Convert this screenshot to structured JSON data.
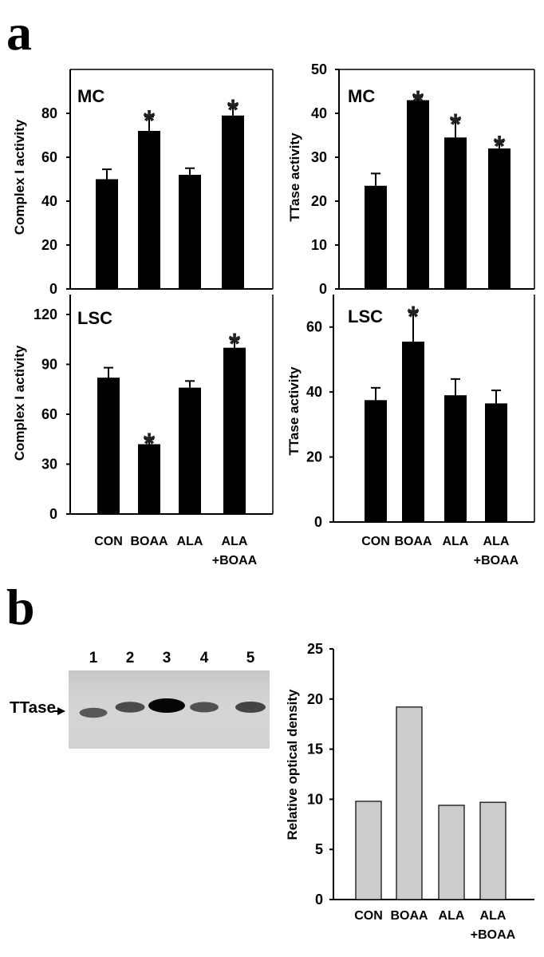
{
  "panels": {
    "a": "a",
    "b": "b"
  },
  "categories": [
    "CON",
    "BOAA",
    "ALA",
    "ALA\n+BOAA"
  ],
  "chart_data": [
    {
      "type": "bar",
      "panel": "a",
      "region": "MC",
      "ylabel": "Complex I activity",
      "ylim": [
        0,
        100
      ],
      "yticks": [
        0,
        20,
        40,
        60,
        80
      ],
      "categories": [
        "CON",
        "BOAA",
        "ALA",
        "ALA +BOAA"
      ],
      "values": [
        50,
        72,
        52,
        79
      ],
      "errors": [
        4.5,
        6.5,
        3,
        4.5
      ],
      "significant": [
        false,
        true,
        false,
        true
      ],
      "bar_color": "#000000"
    },
    {
      "type": "bar",
      "panel": "a",
      "region": "MC",
      "ylabel": "TTase activity",
      "ylim": [
        0,
        50
      ],
      "yticks": [
        0,
        10,
        20,
        30,
        40,
        50
      ],
      "categories": [
        "CON",
        "BOAA",
        "ALA",
        "ALA +BOAA"
      ],
      "values": [
        23.5,
        43,
        34.5,
        32
      ],
      "errors": [
        2.8,
        0.7,
        4,
        1.5
      ],
      "significant": [
        false,
        true,
        true,
        true
      ],
      "bar_color": "#000000"
    },
    {
      "type": "bar",
      "panel": "a",
      "region": "LSC",
      "ylabel": "Complex I activity",
      "ylim": [
        0,
        132
      ],
      "yticks": [
        0,
        30,
        60,
        90,
        120
      ],
      "categories": [
        "CON",
        "BOAA",
        "ALA",
        "ALA +BOAA"
      ],
      "values": [
        82,
        42,
        76,
        100
      ],
      "errors": [
        6,
        3,
        4,
        5
      ],
      "significant": [
        false,
        true,
        false,
        true
      ],
      "bar_color": "#000000"
    },
    {
      "type": "bar",
      "panel": "a",
      "region": "LSC",
      "ylabel": "TTase activity",
      "ylim": [
        0,
        70
      ],
      "yticks": [
        0,
        20,
        40,
        60
      ],
      "categories": [
        "CON",
        "BOAA",
        "ALA",
        "ALA +BOAA"
      ],
      "values": [
        37.5,
        55.5,
        39,
        36.5
      ],
      "errors": [
        3.8,
        9,
        5,
        4
      ],
      "significant": [
        false,
        true,
        false,
        false
      ],
      "bar_color": "#000000"
    },
    {
      "type": "bar",
      "panel": "b",
      "ylabel": "Relative optical density",
      "ylim": [
        0,
        25
      ],
      "yticks": [
        0,
        5,
        10,
        15,
        20,
        25
      ],
      "categories": [
        "CON",
        "BOAA",
        "ALA",
        "ALA +BOAA"
      ],
      "values": [
        9.8,
        19.2,
        9.4,
        9.7
      ],
      "bar_color": "#cccccc"
    }
  ],
  "blot": {
    "label": "TTase",
    "lanes": [
      "1",
      "2",
      "3",
      "4",
      "5"
    ],
    "band_intensity": [
      0.45,
      0.55,
      1.0,
      0.5,
      0.6
    ]
  }
}
